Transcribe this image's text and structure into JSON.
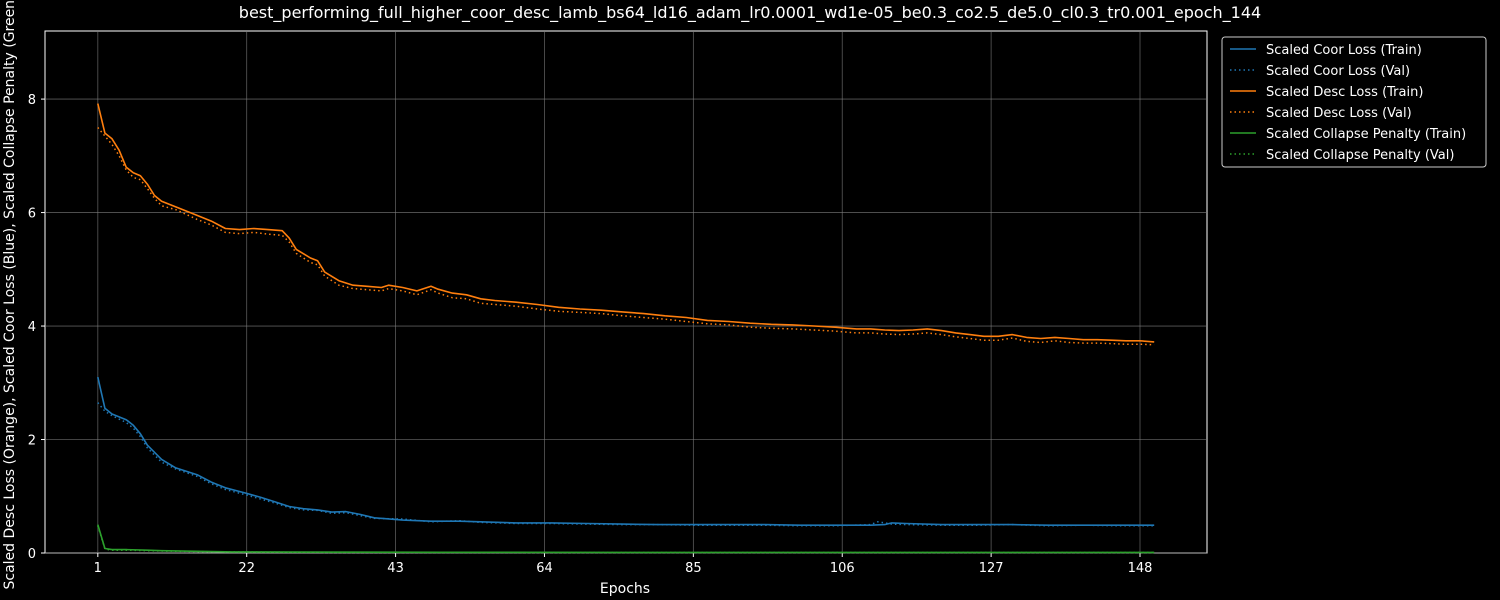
{
  "chart_data": {
    "type": "line",
    "title": "best_performing_full_higher_coor_desc_lamb_bs64_ld16_adam_lr0.0001_wd1e-05_be0.3_co2.5_de5.0_cl0.3_tr0.001_epoch_144",
    "xlabel": "Epochs",
    "ylabel": "Scaled Desc Loss (Orange), Scaled Coor Loss (Blue), Scaled Collapse Penalty (Green)",
    "xlim": [
      -6.45,
      157.45
    ],
    "ylim": [
      0,
      9.2
    ],
    "xticks": [
      1,
      22,
      43,
      64,
      85,
      106,
      127,
      148
    ],
    "yticks": [
      0,
      2,
      4,
      6,
      8
    ],
    "grid": true,
    "legend_position": "upper-right-outside",
    "colors": {
      "blue": "#1f77b4",
      "orange": "#ff7f0e",
      "green": "#2ca02c",
      "grid": "#808080"
    },
    "series": [
      {
        "name": "Scaled Coor Loss (Train)",
        "color": "#1f77b4",
        "style": "solid",
        "points": [
          [
            1,
            3.1
          ],
          [
            2,
            2.55
          ],
          [
            3,
            2.45
          ],
          [
            5,
            2.35
          ],
          [
            6,
            2.25
          ],
          [
            7,
            2.1
          ],
          [
            8,
            1.9
          ],
          [
            10,
            1.65
          ],
          [
            12,
            1.5
          ],
          [
            15,
            1.38
          ],
          [
            17,
            1.25
          ],
          [
            19,
            1.15
          ],
          [
            22,
            1.05
          ],
          [
            24,
            0.98
          ],
          [
            26,
            0.9
          ],
          [
            28,
            0.82
          ],
          [
            30,
            0.78
          ],
          [
            32,
            0.76
          ],
          [
            34,
            0.72
          ],
          [
            36,
            0.73
          ],
          [
            38,
            0.68
          ],
          [
            40,
            0.62
          ],
          [
            44,
            0.58
          ],
          [
            48,
            0.56
          ],
          [
            52,
            0.56
          ],
          [
            55,
            0.55
          ],
          [
            60,
            0.53
          ],
          [
            65,
            0.53
          ],
          [
            70,
            0.52
          ],
          [
            75,
            0.51
          ],
          [
            80,
            0.5
          ],
          [
            85,
            0.5
          ],
          [
            90,
            0.5
          ],
          [
            95,
            0.5
          ],
          [
            100,
            0.49
          ],
          [
            105,
            0.49
          ],
          [
            110,
            0.49
          ],
          [
            112,
            0.5
          ],
          [
            113,
            0.53
          ],
          [
            115,
            0.52
          ],
          [
            120,
            0.5
          ],
          [
            125,
            0.5
          ],
          [
            130,
            0.5
          ],
          [
            135,
            0.49
          ],
          [
            140,
            0.49
          ],
          [
            145,
            0.49
          ],
          [
            150,
            0.49
          ]
        ]
      },
      {
        "name": "Scaled Coor Loss (Val)",
        "color": "#1f77b4",
        "style": "dotted",
        "points": [
          [
            1,
            2.65
          ],
          [
            2,
            2.5
          ],
          [
            3,
            2.42
          ],
          [
            5,
            2.3
          ],
          [
            6,
            2.2
          ],
          [
            7,
            2.05
          ],
          [
            8,
            1.85
          ],
          [
            10,
            1.6
          ],
          [
            12,
            1.48
          ],
          [
            15,
            1.35
          ],
          [
            17,
            1.22
          ],
          [
            19,
            1.12
          ],
          [
            22,
            1.02
          ],
          [
            24,
            0.95
          ],
          [
            26,
            0.88
          ],
          [
            28,
            0.8
          ],
          [
            30,
            0.76
          ],
          [
            32,
            0.75
          ],
          [
            34,
            0.7
          ],
          [
            36,
            0.71
          ],
          [
            38,
            0.66
          ],
          [
            40,
            0.61
          ],
          [
            44,
            0.6
          ],
          [
            48,
            0.55
          ],
          [
            52,
            0.57
          ],
          [
            55,
            0.54
          ],
          [
            60,
            0.52
          ],
          [
            65,
            0.52
          ],
          [
            70,
            0.51
          ],
          [
            75,
            0.5
          ],
          [
            80,
            0.5
          ],
          [
            85,
            0.49
          ],
          [
            90,
            0.49
          ],
          [
            95,
            0.49
          ],
          [
            100,
            0.48
          ],
          [
            105,
            0.48
          ],
          [
            110,
            0.5
          ],
          [
            111,
            0.55
          ],
          [
            113,
            0.51
          ],
          [
            115,
            0.5
          ],
          [
            120,
            0.49
          ],
          [
            125,
            0.49
          ],
          [
            130,
            0.5
          ],
          [
            135,
            0.48
          ],
          [
            140,
            0.49
          ],
          [
            145,
            0.48
          ],
          [
            150,
            0.48
          ]
        ]
      },
      {
        "name": "Scaled Desc Loss (Train)",
        "color": "#ff7f0e",
        "style": "solid",
        "points": [
          [
            1,
            7.92
          ],
          [
            2,
            7.4
          ],
          [
            3,
            7.3
          ],
          [
            4,
            7.1
          ],
          [
            5,
            6.8
          ],
          [
            6,
            6.7
          ],
          [
            7,
            6.65
          ],
          [
            8,
            6.5
          ],
          [
            9,
            6.3
          ],
          [
            10,
            6.2
          ],
          [
            12,
            6.1
          ],
          [
            15,
            5.95
          ],
          [
            17,
            5.85
          ],
          [
            19,
            5.72
          ],
          [
            21,
            5.7
          ],
          [
            23,
            5.72
          ],
          [
            25,
            5.7
          ],
          [
            27,
            5.68
          ],
          [
            28,
            5.55
          ],
          [
            29,
            5.35
          ],
          [
            31,
            5.2
          ],
          [
            32,
            5.15
          ],
          [
            33,
            4.95
          ],
          [
            35,
            4.8
          ],
          [
            37,
            4.72
          ],
          [
            39,
            4.7
          ],
          [
            41,
            4.68
          ],
          [
            42,
            4.72
          ],
          [
            44,
            4.68
          ],
          [
            46,
            4.62
          ],
          [
            48,
            4.7
          ],
          [
            49,
            4.65
          ],
          [
            51,
            4.58
          ],
          [
            53,
            4.55
          ],
          [
            55,
            4.48
          ],
          [
            57,
            4.45
          ],
          [
            60,
            4.42
          ],
          [
            63,
            4.38
          ],
          [
            66,
            4.33
          ],
          [
            69,
            4.3
          ],
          [
            72,
            4.28
          ],
          [
            75,
            4.25
          ],
          [
            78,
            4.22
          ],
          [
            81,
            4.18
          ],
          [
            84,
            4.15
          ],
          [
            87,
            4.1
          ],
          [
            90,
            4.08
          ],
          [
            93,
            4.05
          ],
          [
            96,
            4.03
          ],
          [
            99,
            4.02
          ],
          [
            102,
            4.0
          ],
          [
            105,
            3.98
          ],
          [
            108,
            3.95
          ],
          [
            110,
            3.95
          ],
          [
            112,
            3.93
          ],
          [
            114,
            3.92
          ],
          [
            116,
            3.93
          ],
          [
            118,
            3.95
          ],
          [
            120,
            3.92
          ],
          [
            122,
            3.88
          ],
          [
            124,
            3.85
          ],
          [
            126,
            3.82
          ],
          [
            128,
            3.82
          ],
          [
            130,
            3.85
          ],
          [
            132,
            3.8
          ],
          [
            134,
            3.78
          ],
          [
            136,
            3.8
          ],
          [
            138,
            3.78
          ],
          [
            140,
            3.76
          ],
          [
            142,
            3.76
          ],
          [
            144,
            3.75
          ],
          [
            146,
            3.74
          ],
          [
            148,
            3.74
          ],
          [
            150,
            3.72
          ]
        ]
      },
      {
        "name": "Scaled Desc Loss (Val)",
        "color": "#ff7f0e",
        "style": "dotted",
        "points": [
          [
            1,
            7.5
          ],
          [
            2,
            7.35
          ],
          [
            3,
            7.2
          ],
          [
            4,
            7.0
          ],
          [
            5,
            6.75
          ],
          [
            6,
            6.62
          ],
          [
            7,
            6.58
          ],
          [
            8,
            6.42
          ],
          [
            9,
            6.25
          ],
          [
            10,
            6.12
          ],
          [
            12,
            6.05
          ],
          [
            15,
            5.88
          ],
          [
            17,
            5.78
          ],
          [
            19,
            5.65
          ],
          [
            21,
            5.63
          ],
          [
            23,
            5.65
          ],
          [
            25,
            5.62
          ],
          [
            27,
            5.6
          ],
          [
            28,
            5.48
          ],
          [
            29,
            5.28
          ],
          [
            31,
            5.12
          ],
          [
            32,
            5.08
          ],
          [
            33,
            4.88
          ],
          [
            35,
            4.72
          ],
          [
            37,
            4.66
          ],
          [
            39,
            4.64
          ],
          [
            41,
            4.62
          ],
          [
            42,
            4.66
          ],
          [
            44,
            4.62
          ],
          [
            46,
            4.55
          ],
          [
            48,
            4.64
          ],
          [
            49,
            4.58
          ],
          [
            51,
            4.5
          ],
          [
            53,
            4.48
          ],
          [
            55,
            4.4
          ],
          [
            57,
            4.38
          ],
          [
            60,
            4.35
          ],
          [
            63,
            4.3
          ],
          [
            66,
            4.26
          ],
          [
            69,
            4.24
          ],
          [
            72,
            4.22
          ],
          [
            75,
            4.18
          ],
          [
            78,
            4.15
          ],
          [
            81,
            4.12
          ],
          [
            84,
            4.08
          ],
          [
            87,
            4.04
          ],
          [
            90,
            4.02
          ],
          [
            93,
            3.98
          ],
          [
            96,
            3.96
          ],
          [
            99,
            3.95
          ],
          [
            102,
            3.93
          ],
          [
            105,
            3.91
          ],
          [
            108,
            3.88
          ],
          [
            110,
            3.88
          ],
          [
            112,
            3.86
          ],
          [
            114,
            3.85
          ],
          [
            116,
            3.86
          ],
          [
            118,
            3.88
          ],
          [
            120,
            3.85
          ],
          [
            122,
            3.81
          ],
          [
            124,
            3.78
          ],
          [
            126,
            3.75
          ],
          [
            128,
            3.75
          ],
          [
            130,
            3.79
          ],
          [
            132,
            3.73
          ],
          [
            134,
            3.71
          ],
          [
            136,
            3.74
          ],
          [
            138,
            3.71
          ],
          [
            140,
            3.7
          ],
          [
            142,
            3.7
          ],
          [
            144,
            3.69
          ],
          [
            146,
            3.68
          ],
          [
            148,
            3.68
          ],
          [
            150,
            3.67
          ]
        ]
      },
      {
        "name": "Scaled Collapse Penalty (Train)",
        "color": "#2ca02c",
        "style": "solid",
        "points": [
          [
            1,
            0.5
          ],
          [
            2,
            0.08
          ],
          [
            3,
            0.06
          ],
          [
            5,
            0.06
          ],
          [
            8,
            0.05
          ],
          [
            10,
            0.04
          ],
          [
            15,
            0.03
          ],
          [
            20,
            0.02
          ],
          [
            30,
            0.015
          ],
          [
            50,
            0.012
          ],
          [
            80,
            0.01
          ],
          [
            110,
            0.01
          ],
          [
            150,
            0.01
          ]
        ]
      },
      {
        "name": "Scaled Collapse Penalty (Val)",
        "color": "#2ca02c",
        "style": "dotted",
        "points": [
          [
            1,
            0.48
          ],
          [
            2,
            0.07
          ],
          [
            3,
            0.05
          ],
          [
            5,
            0.05
          ],
          [
            8,
            0.04
          ],
          [
            10,
            0.035
          ],
          [
            15,
            0.025
          ],
          [
            20,
            0.02
          ],
          [
            30,
            0.012
          ],
          [
            50,
            0.01
          ],
          [
            80,
            0.008
          ],
          [
            110,
            0.008
          ],
          [
            150,
            0.008
          ]
        ]
      }
    ]
  }
}
